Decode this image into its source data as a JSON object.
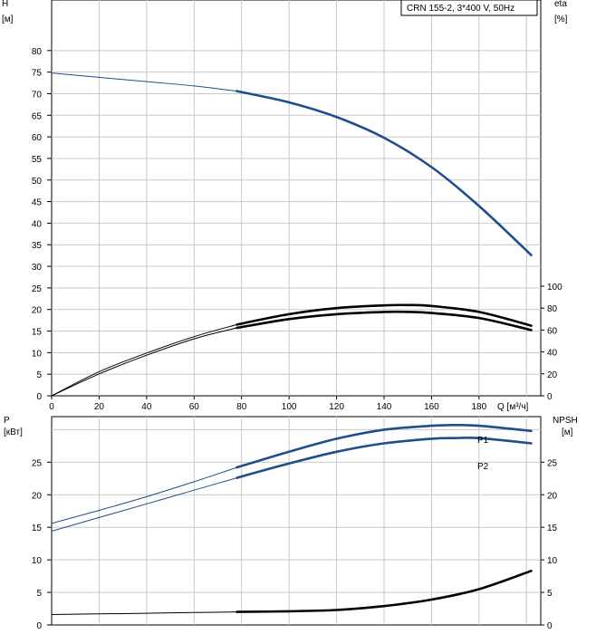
{
  "chart_data": [
    {
      "type": "line",
      "name_label": "CRN 155-2, 3*400 V, 50Hz",
      "x_axis": {
        "label": "Q [м³/ч]",
        "range": [
          0,
          206
        ],
        "ticks": [
          0,
          20,
          40,
          60,
          80,
          100,
          120,
          140,
          160,
          180
        ]
      },
      "y_left": {
        "label": "H",
        "unit": "[м]",
        "range": [
          0,
          85
        ],
        "ticks": [
          0,
          5,
          10,
          15,
          20,
          25,
          30,
          35,
          40,
          45,
          50,
          55,
          60,
          65,
          70,
          75,
          80
        ]
      },
      "y_right": {
        "label": "eta",
        "unit": "[%]",
        "range": [
          0,
          100
        ],
        "ticks": [
          0,
          20,
          40,
          60,
          80,
          100
        ]
      },
      "grid": true,
      "series": [
        {
          "key": "H",
          "axis": "left",
          "color": "#1f4e8c",
          "thin_until": 78,
          "x": [
            0,
            20,
            40,
            60,
            78,
            100,
            120,
            140,
            160,
            180,
            202
          ],
          "y": [
            74.8,
            73.8,
            72.8,
            71.8,
            70.6,
            68,
            64.6,
            59.8,
            53,
            44,
            32.6
          ]
        },
        {
          "key": "eta-upper",
          "axis": "right",
          "color": "#000000",
          "thin_until": 78,
          "x": [
            0,
            20,
            40,
            60,
            78,
            100,
            120,
            140,
            150,
            160,
            180,
            202
          ],
          "y": [
            0,
            22,
            39,
            54,
            65,
            74.5,
            80,
            82.5,
            82.8,
            82,
            76.5,
            64
          ]
        },
        {
          "key": "eta-lower",
          "axis": "right",
          "color": "#000000",
          "thin_until": 78,
          "x": [
            0,
            20,
            40,
            60,
            78,
            100,
            120,
            140,
            150,
            160,
            180,
            202
          ],
          "y": [
            0,
            20,
            37,
            52,
            62,
            70,
            74.5,
            76.5,
            76.5,
            75.5,
            71,
            60
          ]
        }
      ]
    },
    {
      "type": "line",
      "x_axis": {
        "range": [
          0,
          206
        ]
      },
      "y_left": {
        "label": "P",
        "unit": "[кВт]",
        "range": [
          0,
          32
        ],
        "ticks": [
          0,
          5,
          10,
          15,
          20,
          25
        ]
      },
      "y_right": {
        "label": "NPSH",
        "unit": "[м]",
        "range": [
          0,
          32
        ],
        "ticks": [
          0,
          5,
          10,
          15,
          20,
          25
        ]
      },
      "grid": true,
      "series": [
        {
          "name": "P1",
          "axis": "left",
          "color": "#1f4e8c",
          "thin_until": 78,
          "x": [
            0,
            20,
            40,
            60,
            78,
            100,
            120,
            140,
            160,
            170,
            180,
            202
          ],
          "y": [
            15.6,
            17.6,
            19.7,
            22,
            24.2,
            26.6,
            28.6,
            30,
            30.6,
            30.7,
            30.6,
            29.8
          ]
        },
        {
          "name": "P2",
          "axis": "left",
          "color": "#1f4e8c",
          "thin_until": 78,
          "x": [
            0,
            20,
            40,
            60,
            78,
            100,
            120,
            140,
            160,
            170,
            180,
            202
          ],
          "y": [
            14.4,
            16.5,
            18.6,
            20.7,
            22.6,
            24.8,
            26.6,
            27.9,
            28.6,
            28.7,
            28.7,
            27.9
          ]
        },
        {
          "key": "NPSH",
          "axis": "right",
          "color": "#000000",
          "thin_until": 78,
          "x": [
            0,
            20,
            40,
            60,
            78,
            100,
            120,
            140,
            160,
            180,
            202
          ],
          "y": [
            1.6,
            1.7,
            1.8,
            1.9,
            2.0,
            2.1,
            2.3,
            2.9,
            3.9,
            5.5,
            8.3
          ]
        }
      ]
    }
  ]
}
